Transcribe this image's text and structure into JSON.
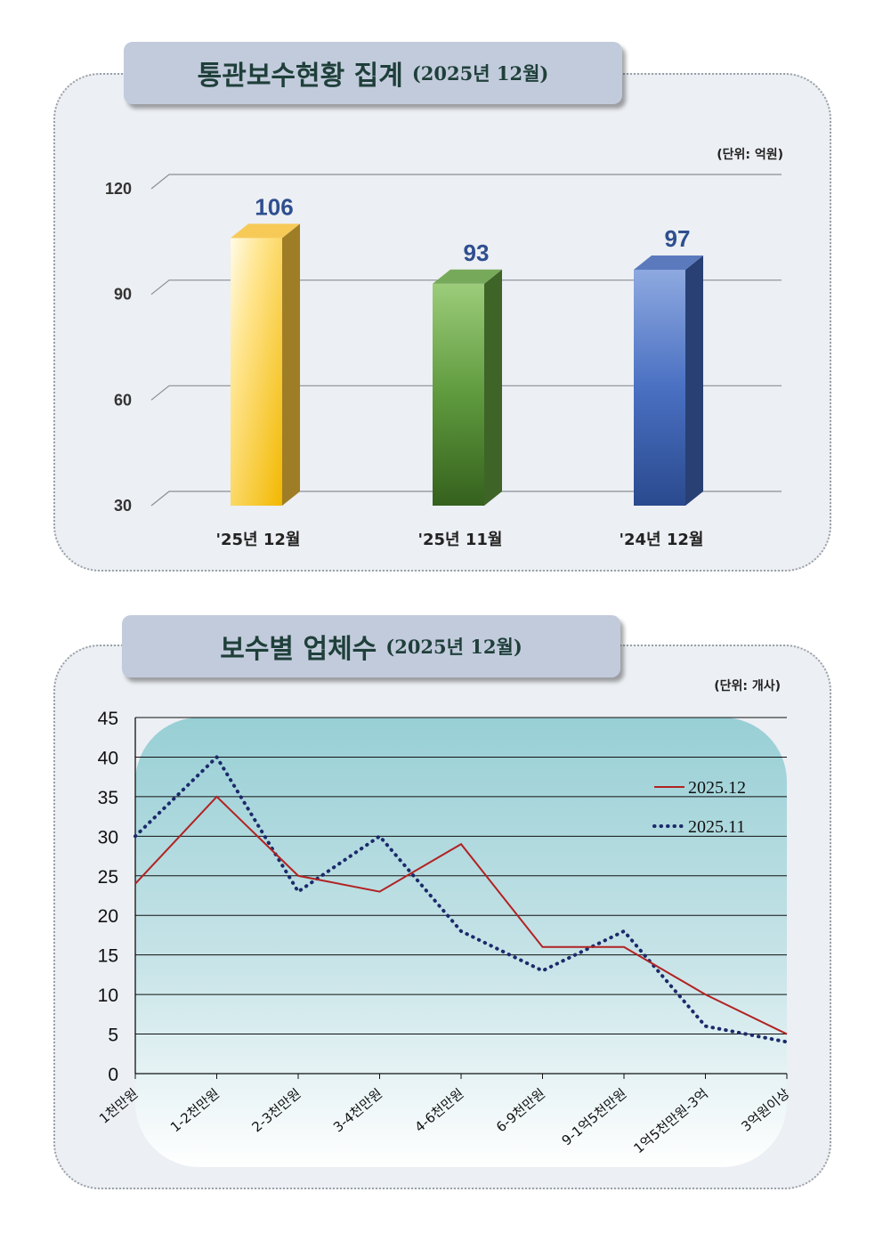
{
  "chart_data": [
    {
      "type": "bar",
      "title": "통관보수현황 집계",
      "subtitle": "(2025년 12월)",
      "unit": "(단위: 억원)",
      "categories": [
        "'25년 12월",
        "'25년 11월",
        "'24년 12월"
      ],
      "values": [
        106,
        93,
        97
      ],
      "value_labels": [
        "106",
        "93",
        "97"
      ],
      "ylim": [
        30,
        120
      ],
      "yticks": [
        30,
        60,
        90,
        120
      ],
      "grid": true,
      "bar_colors": [
        "#f5c13a",
        "#5f9a3e",
        "#3e63b3"
      ]
    },
    {
      "type": "line",
      "title": "보수별 업체수",
      "subtitle": "(2025년 12월)",
      "unit": "(단위: 개사)",
      "categories": [
        "1천만원",
        "1-2천만원",
        "2-3천만원",
        "3-4천만원",
        "4-6천만원",
        "6-9천만원",
        "9-1억5천만원",
        "1억5천만원-3억",
        "3억원이상"
      ],
      "series": [
        {
          "name": "2025.12",
          "values": [
            24,
            35,
            25,
            23,
            29,
            16,
            16,
            10,
            5
          ],
          "color": "#b22222",
          "style": "solid"
        },
        {
          "name": "2025.11",
          "values": [
            30,
            40,
            23,
            30,
            18,
            13,
            18,
            6,
            4
          ],
          "color": "#1c2a6b",
          "style": "dotted"
        }
      ],
      "ylim": [
        0,
        45
      ],
      "yticks": [
        0,
        5,
        10,
        15,
        20,
        25,
        30,
        35,
        40,
        45
      ],
      "legend": "right",
      "grid": true
    }
  ]
}
